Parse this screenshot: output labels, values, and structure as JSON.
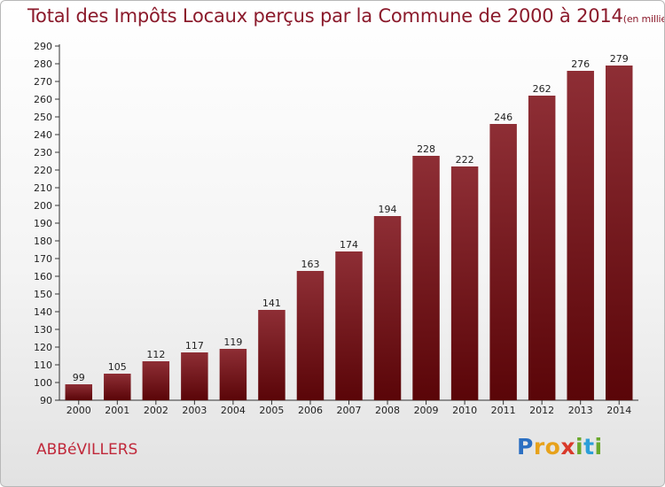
{
  "header": {
    "title": "Total des Impôts Locaux perçus par la Commune de 2000 à 2014",
    "unit": "(en milliers d'€)"
  },
  "footer": {
    "commune": "ABBéVILLERS",
    "logo_letters": [
      {
        "char": "P",
        "color": "#2b6fc2"
      },
      {
        "char": "r",
        "color": "#e7a21b"
      },
      {
        "char": "o",
        "color": "#e7a21b"
      },
      {
        "char": "x",
        "color": "#d93a2b"
      },
      {
        "char": "i",
        "color": "#6aa82c"
      },
      {
        "char": "t",
        "color": "#2b9fd9"
      },
      {
        "char": "i",
        "color": "#6aa82c"
      }
    ]
  },
  "chart_data": {
    "type": "bar",
    "title": "Total des Impôts Locaux perçus par la Commune de 2000 à 2014",
    "subtitle": "(en milliers d'€)",
    "categories": [
      "2000",
      "2001",
      "2002",
      "2003",
      "2004",
      "2005",
      "2006",
      "2007",
      "2008",
      "2009",
      "2010",
      "2011",
      "2012",
      "2013",
      "2014"
    ],
    "values": [
      99,
      105,
      112,
      117,
      119,
      141,
      163,
      174,
      194,
      228,
      222,
      246,
      262,
      276,
      279
    ],
    "ylim": [
      90,
      290
    ],
    "ytick_step": 10,
    "grid": false,
    "bar_color": "#7a1a22"
  }
}
